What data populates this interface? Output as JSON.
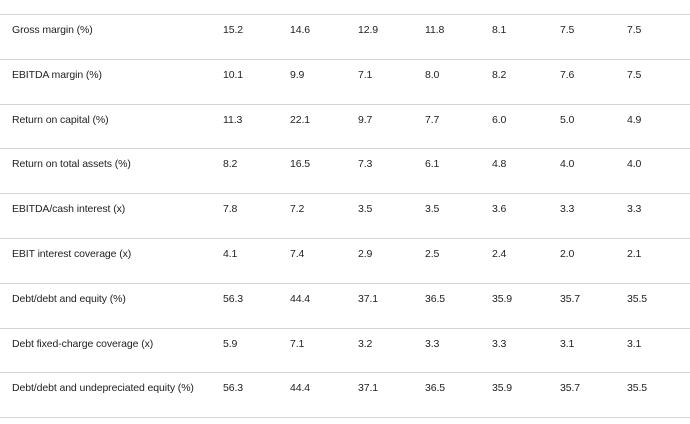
{
  "table": {
    "rows": [
      [
        "Gross margin (%)",
        "15.2",
        "14.6",
        "12.9",
        "11.8",
        "8.1",
        "7.5",
        "7.5"
      ],
      [
        "EBITDA margin (%)",
        "10.1",
        "9.9",
        "7.1",
        "8.0",
        "8.2",
        "7.6",
        "7.5"
      ],
      [
        "Return on capital (%)",
        "11.3",
        "22.1",
        "9.7",
        "7.7",
        "6.0",
        "5.0",
        "4.9"
      ],
      [
        "Return on total assets (%)",
        "8.2",
        "16.5",
        "7.3",
        "6.1",
        "4.8",
        "4.0",
        "4.0"
      ],
      [
        "EBITDA/cash interest (x)",
        "7.8",
        "7.2",
        "3.5",
        "3.5",
        "3.6",
        "3.3",
        "3.3"
      ],
      [
        "EBIT interest coverage (x)",
        "4.1",
        "7.4",
        "2.9",
        "2.5",
        "2.4",
        "2.0",
        "2.1"
      ],
      [
        "Debt/debt and equity (%)",
        "56.3",
        "44.4",
        "37.1",
        "36.5",
        "35.9",
        "35.7",
        "35.5"
      ],
      [
        "Debt fixed-charge coverage (x)",
        "5.9",
        "7.1",
        "3.2",
        "3.3",
        "3.3",
        "3.1",
        "3.1"
      ],
      [
        "Debt/debt and undepreciated equity (%)",
        "56.3",
        "44.4",
        "37.1",
        "36.5",
        "35.9",
        "35.7",
        "35.5"
      ]
    ]
  }
}
